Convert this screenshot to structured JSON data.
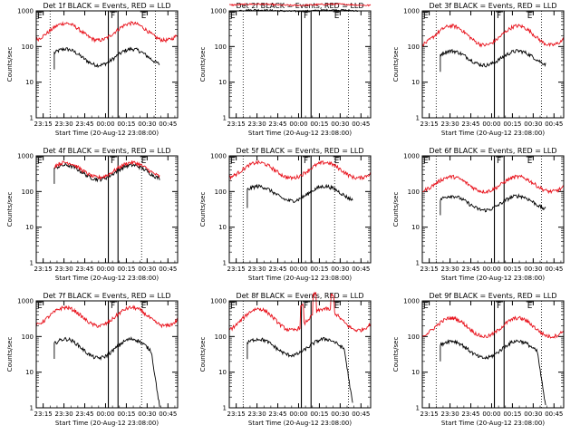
{
  "colors": {
    "events": "#000000",
    "lld": "#e8101a",
    "axis": "#000000",
    "background": "#ffffff"
  },
  "chart_data": {
    "type": "line",
    "layout": "3x3 grid",
    "y_scale": "log",
    "ylim": [
      1,
      1000
    ],
    "y_ticks": [
      1,
      10,
      100,
      1000
    ],
    "y_tick_labels": [
      "1",
      "10",
      "100",
      "1000"
    ],
    "ylabel": "Counts/sec",
    "xlabel": "Start Time (20-Aug-12 23:08:00)",
    "x_ticks": [
      "23:15",
      "23:30",
      "23:45",
      "00:00",
      "00:15",
      "00:30",
      "00:45"
    ],
    "xlim_minutes": [
      -5,
      97
    ],
    "xlim_labels": [
      "23:10",
      "00:52"
    ],
    "flag_labels": [
      "E",
      "F",
      "E"
    ],
    "flag_times": [
      "23:10",
      "00:03",
      "00:25"
    ],
    "event_lines": [
      "00:02",
      "00:09"
    ],
    "dotted_lines_left": [
      "23:20",
      "23:20",
      "23:20",
      "23:10",
      "23:20",
      "23:20",
      "23:10",
      "23:20",
      "23:20"
    ],
    "dotted_lines_right": [
      "00:36",
      "00:36",
      "00:36",
      "00:26",
      "00:26",
      "00:36",
      "00:26",
      "00:36",
      "00:36"
    ],
    "panels": [
      {
        "title": "Det 1f BLACK = Events, RED = LLD",
        "series": [
          {
            "name": "Events",
            "color": "#000000",
            "start": 8,
            "end": 84,
            "profile": "wave",
            "low": 30,
            "high": 85
          },
          {
            "name": "LLD",
            "color": "#e8101a",
            "start": -5,
            "end": 97,
            "profile": "wave",
            "low": 150,
            "high": 450
          }
        ]
      },
      {
        "title": "Det 2f BLACK = Events, RED = LLD",
        "series": [
          {
            "name": "Events",
            "color": "#000000",
            "start": 2,
            "end": 88,
            "profile": "flat",
            "low": 900,
            "high": 1150
          },
          {
            "name": "LLD",
            "color": "#e8101a",
            "start": -5,
            "end": 97,
            "profile": "flat",
            "low": 1300,
            "high": 1700
          }
        ]
      },
      {
        "title": "Det 3f BLACK = Events, RED = LLD",
        "series": [
          {
            "name": "Events",
            "color": "#000000",
            "start": 8,
            "end": 84,
            "profile": "wave",
            "low": 30,
            "high": 75
          },
          {
            "name": "LLD",
            "color": "#e8101a",
            "start": -5,
            "end": 97,
            "profile": "wave",
            "low": 110,
            "high": 380
          }
        ]
      },
      {
        "title": "Det 4f BLACK = Events, RED = LLD",
        "series": [
          {
            "name": "Events",
            "color": "#000000",
            "start": 8,
            "end": 84,
            "profile": "wave",
            "low": 220,
            "high": 550
          },
          {
            "name": "LLD",
            "color": "#e8101a",
            "start": 8,
            "end": 84,
            "profile": "wave",
            "low": 250,
            "high": 650
          }
        ]
      },
      {
        "title": "Det 5f BLACK = Events, RED = LLD",
        "series": [
          {
            "name": "Events",
            "color": "#000000",
            "start": 8,
            "end": 84,
            "profile": "wave",
            "low": 55,
            "high": 140
          },
          {
            "name": "LLD",
            "color": "#e8101a",
            "start": -5,
            "end": 97,
            "profile": "wave",
            "low": 240,
            "high": 650
          }
        ]
      },
      {
        "title": "Det 6f BLACK = Events, RED = LLD",
        "series": [
          {
            "name": "Events",
            "color": "#000000",
            "start": 8,
            "end": 84,
            "profile": "wave",
            "low": 30,
            "high": 75
          },
          {
            "name": "LLD",
            "color": "#e8101a",
            "start": -5,
            "end": 97,
            "profile": "wave",
            "low": 100,
            "high": 260
          }
        ]
      },
      {
        "title": "Det 7f BLACK = Events, RED = LLD",
        "series": [
          {
            "name": "Events",
            "color": "#000000",
            "start": 8,
            "end": 84,
            "profile": "wave_drop",
            "low": 25,
            "high": 85
          },
          {
            "name": "LLD",
            "color": "#e8101a",
            "start": -5,
            "end": 97,
            "profile": "wave",
            "low": 200,
            "high": 650
          }
        ]
      },
      {
        "title": "Det 8f BLACK = Events, RED = LLD",
        "series": [
          {
            "name": "Events",
            "color": "#000000",
            "start": 8,
            "end": 84,
            "profile": "wave_drop",
            "low": 30,
            "high": 85
          },
          {
            "name": "LLD",
            "color": "#e8101a",
            "start": -5,
            "end": 97,
            "profile": "wave_spike",
            "low": 150,
            "high": 600
          }
        ]
      },
      {
        "title": "Det 9f BLACK = Events, RED = LLD",
        "series": [
          {
            "name": "Events",
            "color": "#000000",
            "start": 8,
            "end": 84,
            "profile": "wave_drop",
            "low": 25,
            "high": 75
          },
          {
            "name": "LLD",
            "color": "#e8101a",
            "start": -5,
            "end": 97,
            "profile": "wave",
            "low": 100,
            "high": 330
          }
        ]
      }
    ]
  }
}
